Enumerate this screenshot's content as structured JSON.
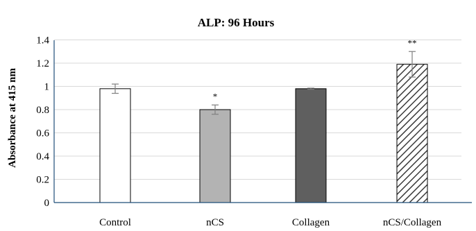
{
  "chart_data": {
    "type": "bar",
    "title": "ALP: 96 Hours",
    "ylabel": "Absorbance at 415 nm",
    "xlabel": "",
    "ylim": [
      0,
      1.4
    ],
    "yticks": [
      "0",
      "0.2",
      "0.4",
      "0.6",
      "0.8",
      "1",
      "1.2",
      "1.4"
    ],
    "ytick_values": [
      0,
      0.2,
      0.4,
      0.6,
      0.8,
      1,
      1.2,
      1.4
    ],
    "grid": true,
    "categories": [
      "Control",
      "nCS",
      "Collagen",
      "nCS/Collagen"
    ],
    "values": [
      0.98,
      0.8,
      0.98,
      1.19
    ],
    "errors": [
      0.04,
      0.04,
      0.005,
      0.11
    ],
    "significance": [
      "",
      "*",
      "",
      "**"
    ],
    "fills": [
      "white",
      "#b3b3b3",
      "#5f5f5f",
      "hatch"
    ]
  }
}
